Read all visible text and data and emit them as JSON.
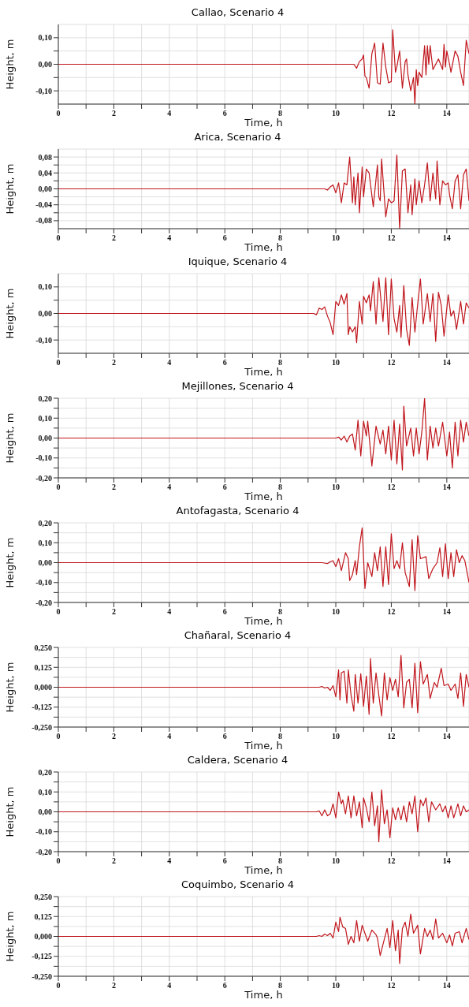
{
  "chart_data": [
    {
      "type": "line",
      "title": "Callao, Scenario 4",
      "xlabel": "Time, h",
      "ylabel": "Height, m",
      "color": "#c0161c",
      "grid": true,
      "marker": "none",
      "line_style": "solid",
      "xlim": [
        0,
        14.8
      ],
      "xticks": [
        0,
        {
          "value": 1,
          "label": null
        },
        2,
        {
          "value": 3,
          "label": null
        },
        4,
        {
          "value": 5,
          "label": null
        },
        6,
        {
          "value": 7,
          "label": null
        },
        8,
        {
          "value": 9,
          "label": null
        },
        10,
        {
          "value": 11,
          "label": null
        },
        12,
        {
          "value": 13,
          "label": null
        },
        14
      ],
      "ylim": [
        -0.15,
        0.15
      ],
      "yticks": [
        {
          "value": -0.1,
          "label": "-0,10"
        },
        {
          "value": -0.05,
          "label": null
        },
        {
          "value": 0,
          "label": "0,00"
        },
        {
          "value": 0.05,
          "label": null
        },
        {
          "value": 0.1,
          "label": "0,10"
        }
      ],
      "x": [
        0,
        10.5,
        10.65,
        10.75,
        10.85,
        10.95,
        11.0,
        11.05,
        11.1,
        11.2,
        11.3,
        11.4,
        11.5,
        11.6,
        11.7,
        11.8,
        11.9,
        12.0,
        12.05,
        12.15,
        12.2,
        12.3,
        12.4,
        12.5,
        12.55,
        12.6,
        12.7,
        12.8,
        12.85,
        12.9,
        12.95,
        13.0,
        13.1,
        13.2,
        13.25,
        13.3,
        13.35,
        13.4,
        13.5,
        13.7,
        13.85,
        13.9,
        13.95,
        14.0,
        14.1,
        14.15,
        14.3,
        14.4,
        14.5,
        14.6,
        14.7,
        14.8
      ],
      "values": [
        0,
        0,
        0,
        -0.015,
        0.01,
        0.02,
        0.035,
        -0.045,
        -0.05,
        -0.09,
        0.04,
        0.08,
        -0.07,
        -0.075,
        0.08,
        -0.01,
        -0.07,
        -0.065,
        0.13,
        -0.03,
        -0.01,
        0.05,
        -0.09,
        0.01,
        0.02,
        -0.04,
        -0.1,
        -0.05,
        -0.15,
        -0.02,
        -0.08,
        -0.03,
        -0.05,
        0.07,
        -0.04,
        0.07,
        0.0,
        0.07,
        -0.02,
        0.02,
        -0.02,
        0.075,
        -0.01,
        0.05,
        0.0,
        -0.03,
        0.05,
        0.03,
        -0.03,
        -0.08,
        0.09,
        0.04
      ]
    },
    {
      "type": "line",
      "title": "Arica, Scenario 4",
      "xlabel": "Time, h",
      "ylabel": "Height, m",
      "color": "#c0161c",
      "grid": true,
      "marker": "none",
      "line_style": "solid",
      "xlim": [
        0,
        14.8
      ],
      "xticks": [
        0,
        {
          "value": 1,
          "label": null
        },
        2,
        {
          "value": 3,
          "label": null
        },
        4,
        {
          "value": 5,
          "label": null
        },
        6,
        {
          "value": 7,
          "label": null
        },
        8,
        {
          "value": 9,
          "label": null
        },
        10,
        {
          "value": 11,
          "label": null
        },
        12,
        {
          "value": 13,
          "label": null
        },
        14
      ],
      "ylim": [
        -0.1,
        0.1
      ],
      "yticks": [
        {
          "value": -0.08,
          "label": "-0,08"
        },
        {
          "value": -0.06,
          "label": null
        },
        {
          "value": -0.04,
          "label": "-0,04"
        },
        {
          "value": -0.02,
          "label": null
        },
        {
          "value": 0,
          "label": "0,00"
        },
        {
          "value": 0.02,
          "label": null
        },
        {
          "value": 0.04,
          "label": "0,04"
        },
        {
          "value": 0.06,
          "label": null
        },
        {
          "value": 0.08,
          "label": "0,08"
        }
      ],
      "x": [
        0,
        9.6,
        9.7,
        9.8,
        9.9,
        10.0,
        10.1,
        10.2,
        10.3,
        10.4,
        10.5,
        10.6,
        10.65,
        10.7,
        10.8,
        10.85,
        10.95,
        11.0,
        11.1,
        11.2,
        11.35,
        11.5,
        11.55,
        11.6,
        11.65,
        11.8,
        11.9,
        12.0,
        12.1,
        12.2,
        12.3,
        12.4,
        12.5,
        12.6,
        12.7,
        12.75,
        12.85,
        12.9,
        13.0,
        13.1,
        13.2,
        13.3,
        13.4,
        13.5,
        13.6,
        13.65,
        13.75,
        13.85,
        13.95,
        14.05,
        14.1,
        14.2,
        14.3,
        14.4,
        14.5,
        14.6,
        14.7,
        14.8
      ],
      "values": [
        0,
        0,
        -0.003,
        0.005,
        0.01,
        -0.01,
        0.015,
        -0.035,
        0.015,
        0.01,
        0.08,
        -0.035,
        0.03,
        -0.04,
        0.04,
        -0.06,
        0.055,
        -0.02,
        0.05,
        0.04,
        -0.045,
        0.06,
        -0.02,
        -0.03,
        0.075,
        -0.07,
        -0.025,
        -0.035,
        -0.03,
        0.085,
        -0.1,
        0.045,
        0.05,
        -0.06,
        0.01,
        -0.065,
        0.025,
        -0.04,
        0.02,
        -0.035,
        0.01,
        0.065,
        -0.03,
        0.04,
        -0.025,
        0.07,
        -0.04,
        0.02,
        0.01,
        0.015,
        -0.015,
        -0.05,
        0.02,
        0.035,
        -0.05,
        0.035,
        0.05,
        -0.03
      ]
    },
    {
      "type": "line",
      "title": "Iquique, Scenario 4",
      "xlabel": "Time, h",
      "ylabel": "Height, m",
      "color": "#c0161c",
      "grid": true,
      "marker": "none",
      "line_style": "solid",
      "xlim": [
        0,
        14.8
      ],
      "xticks": [
        0,
        {
          "value": 1,
          "label": null
        },
        2,
        {
          "value": 3,
          "label": null
        },
        4,
        {
          "value": 5,
          "label": null
        },
        6,
        {
          "value": 7,
          "label": null
        },
        8,
        {
          "value": 9,
          "label": null
        },
        10,
        {
          "value": 11,
          "label": null
        },
        12,
        {
          "value": 13,
          "label": null
        },
        14
      ],
      "ylim": [
        -0.15,
        0.15
      ],
      "yticks": [
        {
          "value": -0.1,
          "label": "-0,10"
        },
        {
          "value": -0.05,
          "label": null
        },
        {
          "value": 0,
          "label": "0,00"
        },
        {
          "value": 0.05,
          "label": null
        },
        {
          "value": 0.1,
          "label": "0,10"
        }
      ],
      "x": [
        0,
        9.2,
        9.3,
        9.4,
        9.5,
        9.6,
        9.7,
        9.8,
        9.9,
        10.0,
        10.1,
        10.2,
        10.3,
        10.4,
        10.45,
        10.5,
        10.6,
        10.7,
        10.75,
        10.85,
        10.95,
        11.0,
        11.1,
        11.2,
        11.25,
        11.35,
        11.45,
        11.55,
        11.7,
        11.8,
        11.9,
        12.0,
        12.1,
        12.2,
        12.3,
        12.35,
        12.45,
        12.55,
        12.65,
        12.75,
        12.85,
        12.95,
        13.05,
        13.15,
        13.3,
        13.4,
        13.5,
        13.6,
        13.7,
        13.8,
        13.9,
        14.05,
        14.15,
        14.25,
        14.35,
        14.5,
        14.6,
        14.7,
        14.8
      ],
      "values": [
        0,
        0,
        -0.005,
        0.02,
        0.015,
        0.025,
        -0.01,
        -0.035,
        -0.08,
        0.045,
        0.03,
        0.07,
        0.035,
        0.075,
        -0.08,
        -0.05,
        -0.07,
        -0.05,
        -0.11,
        0.045,
        -0.04,
        0.065,
        0.04,
        0.07,
        0.01,
        0.12,
        -0.04,
        0.135,
        -0.03,
        0.135,
        -0.08,
        0.13,
        -0.02,
        -0.07,
        0.03,
        -0.09,
        0.105,
        -0.06,
        -0.12,
        0.06,
        -0.07,
        0.035,
        0.13,
        -0.04,
        0.075,
        -0.03,
        0.075,
        -0.105,
        0.08,
        0.03,
        -0.085,
        0.07,
        -0.01,
        0.01,
        -0.06,
        0.045,
        -0.04,
        0.04,
        0.02
      ]
    },
    {
      "type": "line",
      "title": "Mejillones, Scenario 4",
      "xlabel": "Time, h",
      "ylabel": "Height, m",
      "color": "#c0161c",
      "grid": true,
      "marker": "none",
      "line_style": "solid",
      "xlim": [
        0,
        14.8
      ],
      "xticks": [
        0,
        {
          "value": 1,
          "label": null
        },
        2,
        {
          "value": 3,
          "label": null
        },
        4,
        {
          "value": 5,
          "label": null
        },
        6,
        {
          "value": 7,
          "label": null
        },
        8,
        {
          "value": 9,
          "label": null
        },
        10,
        {
          "value": 11,
          "label": null
        },
        12,
        {
          "value": 13,
          "label": null
        },
        14
      ],
      "ylim": [
        -0.2,
        0.2
      ],
      "yticks": [
        {
          "value": -0.2,
          "label": "-0,20"
        },
        {
          "value": -0.15,
          "label": null
        },
        {
          "value": -0.1,
          "label": "-0,10"
        },
        {
          "value": -0.05,
          "label": null
        },
        {
          "value": 0,
          "label": "0,00"
        },
        {
          "value": 0.05,
          "label": null
        },
        {
          "value": 0.1,
          "label": "0,10"
        },
        {
          "value": 0.15,
          "label": null
        },
        {
          "value": 0.2,
          "label": "0,20"
        }
      ],
      "x": [
        0,
        10.0,
        10.1,
        10.2,
        10.3,
        10.4,
        10.5,
        10.6,
        10.7,
        10.8,
        10.9,
        11.0,
        11.1,
        11.15,
        11.3,
        11.45,
        11.6,
        11.7,
        11.8,
        11.9,
        12.0,
        12.1,
        12.2,
        12.3,
        12.4,
        12.45,
        12.55,
        12.7,
        12.8,
        12.9,
        13.0,
        13.1,
        13.2,
        13.3,
        13.4,
        13.5,
        13.6,
        13.7,
        13.85,
        14.0,
        14.1,
        14.2,
        14.3,
        14.4,
        14.5,
        14.6,
        14.7,
        14.8
      ],
      "values": [
        0,
        0,
        0.005,
        -0.01,
        0.01,
        -0.02,
        0.01,
        0.02,
        -0.06,
        0.09,
        -0.09,
        0.085,
        0.01,
        0.085,
        -0.14,
        0.06,
        -0.03,
        0.04,
        -0.08,
        0.06,
        -0.11,
        0.09,
        -0.13,
        0.07,
        -0.16,
        0.16,
        -0.04,
        0.05,
        -0.09,
        0.05,
        -0.08,
        0.03,
        0.2,
        -0.11,
        0.06,
        -0.05,
        0.05,
        -0.04,
        0.08,
        -0.09,
        0.03,
        -0.15,
        0.08,
        -0.09,
        0.09,
        -0.02,
        0.08,
        0.01
      ]
    },
    {
      "type": "line",
      "title": "Antofagasta, Scenario 4",
      "xlabel": "Time, h",
      "ylabel": "Height, m",
      "color": "#c0161c",
      "grid": true,
      "marker": "none",
      "line_style": "solid",
      "xlim": [
        0,
        14.8
      ],
      "xticks": [
        0,
        {
          "value": 1,
          "label": null
        },
        2,
        {
          "value": 3,
          "label": null
        },
        4,
        {
          "value": 5,
          "label": null
        },
        6,
        {
          "value": 7,
          "label": null
        },
        8,
        {
          "value": 9,
          "label": null
        },
        10,
        {
          "value": 11,
          "label": null
        },
        12,
        {
          "value": 13,
          "label": null
        },
        14
      ],
      "ylim": [
        -0.2,
        0.2
      ],
      "yticks": [
        {
          "value": -0.2,
          "label": "-0,20"
        },
        {
          "value": -0.15,
          "label": null
        },
        {
          "value": -0.1,
          "label": "-0,10"
        },
        {
          "value": -0.05,
          "label": null
        },
        {
          "value": 0,
          "label": "0,00"
        },
        {
          "value": 0.05,
          "label": null
        },
        {
          "value": 0.1,
          "label": "0,10"
        },
        {
          "value": 0.15,
          "label": null
        },
        {
          "value": 0.2,
          "label": "0,20"
        }
      ],
      "x": [
        0,
        9.5,
        9.7,
        9.8,
        9.9,
        10.0,
        10.1,
        10.2,
        10.35,
        10.45,
        10.5,
        10.6,
        10.7,
        10.75,
        10.85,
        10.95,
        11.05,
        11.15,
        11.3,
        11.4,
        11.5,
        11.6,
        11.7,
        11.8,
        11.9,
        12.0,
        12.1,
        12.2,
        12.3,
        12.4,
        12.5,
        12.65,
        12.75,
        12.85,
        12.95,
        13.05,
        13.25,
        13.35,
        13.5,
        13.65,
        13.75,
        13.85,
        13.95,
        14.05,
        14.15,
        14.25,
        14.35,
        14.45,
        14.55,
        14.65,
        14.8
      ],
      "values": [
        0,
        0,
        -0.005,
        0.005,
        0.01,
        -0.02,
        0.02,
        -0.04,
        0.05,
        0.02,
        -0.09,
        -0.06,
        0.01,
        -0.06,
        0.08,
        0.175,
        -0.13,
        0.0,
        -0.07,
        0.05,
        -0.04,
        0.08,
        -0.12,
        0.08,
        -0.11,
        0.145,
        -0.03,
        0.01,
        -0.03,
        0.1,
        -0.05,
        -0.12,
        0.115,
        -0.14,
        0.135,
        0.02,
        0.03,
        -0.08,
        -0.03,
        0.0,
        0.075,
        -0.07,
        0.095,
        -0.08,
        0.05,
        -0.07,
        0.065,
        0.0,
        0.035,
        0.01,
        -0.1
      ]
    },
    {
      "type": "line",
      "title": "Chañaral, Scenario 4",
      "xlabel": "Time, h",
      "ylabel": "Height, m",
      "color": "#c0161c",
      "grid": true,
      "marker": "none",
      "line_style": "solid",
      "xlim": [
        0,
        14.8
      ],
      "xticks": [
        0,
        {
          "value": 1,
          "label": null
        },
        2,
        {
          "value": 3,
          "label": null
        },
        4,
        {
          "value": 5,
          "label": null
        },
        6,
        {
          "value": 7,
          "label": null
        },
        8,
        {
          "value": 9,
          "label": null
        },
        10,
        {
          "value": 11,
          "label": null
        },
        12,
        {
          "value": 13,
          "label": null
        },
        14
      ],
      "ylim": [
        -0.25,
        0.25
      ],
      "yticks": [
        {
          "value": -0.25,
          "label": "-0,250"
        },
        {
          "value": -0.1875,
          "label": null
        },
        {
          "value": -0.125,
          "label": "-0,125"
        },
        {
          "value": -0.0625,
          "label": null
        },
        {
          "value": 0,
          "label": "0,000"
        },
        {
          "value": 0.0625,
          "label": null
        },
        {
          "value": 0.125,
          "label": "0,125"
        },
        {
          "value": 0.1875,
          "label": null
        },
        {
          "value": 0.25,
          "label": "0,250"
        }
      ],
      "x": [
        0,
        9.4,
        9.5,
        9.6,
        9.7,
        9.8,
        9.9,
        10.0,
        10.1,
        10.15,
        10.2,
        10.3,
        10.4,
        10.45,
        10.55,
        10.65,
        10.7,
        10.8,
        10.9,
        11.0,
        11.1,
        11.2,
        11.25,
        11.35,
        11.45,
        11.55,
        11.65,
        11.75,
        11.85,
        11.95,
        12.05,
        12.15,
        12.25,
        12.35,
        12.45,
        12.55,
        12.65,
        12.75,
        12.85,
        12.95,
        13.05,
        13.15,
        13.3,
        13.4,
        13.55,
        13.65,
        13.8,
        13.9,
        14.05,
        14.15,
        14.3,
        14.4,
        14.5,
        14.6,
        14.7,
        14.8
      ],
      "values": [
        0,
        0,
        0.005,
        -0.005,
        0.0,
        -0.02,
        0.01,
        -0.06,
        0.11,
        -0.08,
        0.09,
        0.1,
        -0.1,
        0.11,
        -0.05,
        -0.15,
        0.08,
        -0.1,
        0.085,
        -0.12,
        0.07,
        -0.17,
        0.18,
        -0.1,
        0.09,
        -0.05,
        -0.18,
        0.09,
        -0.08,
        0.06,
        -0.02,
        0.05,
        -0.06,
        0.2,
        -0.13,
        0.03,
        0.05,
        -0.13,
        0.15,
        -0.16,
        0.16,
        0.02,
        0.08,
        -0.07,
        0.03,
        0.0,
        0.12,
        0.01,
        0.02,
        -0.02,
        0.02,
        -0.07,
        0.09,
        -0.12,
        0.08,
        0.0
      ]
    },
    {
      "type": "line",
      "title": "Caldera, Scenario 4",
      "xlabel": "Time, h",
      "ylabel": "Height, m",
      "color": "#c0161c",
      "grid": true,
      "marker": "none",
      "line_style": "solid",
      "xlim": [
        0,
        14.8
      ],
      "xticks": [
        0,
        {
          "value": 1,
          "label": null
        },
        2,
        {
          "value": 3,
          "label": null
        },
        4,
        {
          "value": 5,
          "label": null
        },
        6,
        {
          "value": 7,
          "label": null
        },
        8,
        {
          "value": 9,
          "label": null
        },
        10,
        {
          "value": 11,
          "label": null
        },
        12,
        {
          "value": 13,
          "label": null
        },
        14
      ],
      "ylim": [
        -0.2,
        0.2
      ],
      "yticks": [
        {
          "value": -0.2,
          "label": "-0,20"
        },
        {
          "value": -0.15,
          "label": null
        },
        {
          "value": -0.1,
          "label": "-0,10"
        },
        {
          "value": -0.05,
          "label": null
        },
        {
          "value": 0,
          "label": "0,00"
        },
        {
          "value": 0.05,
          "label": null
        },
        {
          "value": 0.1,
          "label": "0,10"
        },
        {
          "value": 0.15,
          "label": null
        },
        {
          "value": 0.2,
          "label": "0,20"
        }
      ],
      "x": [
        0,
        9.3,
        9.4,
        9.5,
        9.6,
        9.7,
        9.8,
        9.9,
        10.0,
        10.1,
        10.2,
        10.25,
        10.35,
        10.45,
        10.55,
        10.65,
        10.75,
        10.85,
        10.95,
        11.0,
        11.1,
        11.2,
        11.3,
        11.4,
        11.5,
        11.55,
        11.65,
        11.75,
        11.85,
        11.95,
        12.05,
        12.15,
        12.25,
        12.35,
        12.45,
        12.55,
        12.65,
        12.75,
        12.85,
        12.95,
        13.05,
        13.15,
        13.25,
        13.35,
        13.45,
        13.6,
        13.75,
        13.85,
        13.95,
        14.05,
        14.15,
        14.25,
        14.4,
        14.5,
        14.6,
        14.7,
        14.8
      ],
      "values": [
        0,
        0,
        0.005,
        -0.02,
        0.01,
        -0.02,
        -0.01,
        0.04,
        -0.03,
        0.1,
        0.04,
        0.06,
        -0.01,
        0.08,
        -0.03,
        0.08,
        -0.02,
        0.05,
        -0.08,
        0.07,
        0.02,
        -0.05,
        0.1,
        -0.07,
        0.03,
        -0.15,
        0.11,
        -0.06,
        0.01,
        -0.13,
        0.02,
        -0.04,
        0.02,
        -0.04,
        0.03,
        -0.05,
        0.05,
        -0.01,
        0.08,
        -0.1,
        0.06,
        0.03,
        0.07,
        -0.05,
        0.05,
        0.01,
        0.04,
        0.0,
        0.03,
        -0.03,
        0.03,
        -0.03,
        0.04,
        -0.02,
        0.03,
        0.0,
        0.01
      ]
    },
    {
      "type": "line",
      "title": "Coquimbo, Scenario 4",
      "xlabel": "Time, h",
      "ylabel": "Height, m",
      "color": "#c0161c",
      "grid": true,
      "marker": "none",
      "line_style": "solid",
      "xlim": [
        0,
        14.8
      ],
      "xticks": [
        0,
        {
          "value": 1,
          "label": null
        },
        2,
        {
          "value": 3,
          "label": null
        },
        4,
        {
          "value": 5,
          "label": null
        },
        6,
        {
          "value": 7,
          "label": null
        },
        8,
        {
          "value": 9,
          "label": null
        },
        10,
        {
          "value": 11,
          "label": null
        },
        12,
        {
          "value": 13,
          "label": null
        },
        14
      ],
      "ylim": [
        -0.25,
        0.25
      ],
      "yticks": [
        {
          "value": -0.25,
          "label": "-0,250"
        },
        {
          "value": -0.1875,
          "label": null
        },
        {
          "value": -0.125,
          "label": "-0,125"
        },
        {
          "value": -0.0625,
          "label": null
        },
        {
          "value": 0,
          "label": "0,000"
        },
        {
          "value": 0.0625,
          "label": null
        },
        {
          "value": 0.125,
          "label": "0,125"
        },
        {
          "value": 0.1875,
          "label": null
        },
        {
          "value": 0.25,
          "label": "0,250"
        }
      ],
      "x": [
        0,
        9.3,
        9.4,
        9.5,
        9.6,
        9.7,
        9.8,
        9.9,
        10.0,
        10.1,
        10.15,
        10.25,
        10.35,
        10.45,
        10.55,
        10.65,
        10.75,
        10.85,
        10.95,
        11.05,
        11.15,
        11.3,
        11.45,
        11.5,
        11.6,
        11.7,
        11.85,
        11.95,
        12.05,
        12.15,
        12.25,
        12.3,
        12.4,
        12.5,
        12.6,
        12.7,
        12.8,
        12.95,
        13.05,
        13.2,
        13.3,
        13.4,
        13.5,
        13.6,
        13.7,
        13.85,
        14.0,
        14.1,
        14.2,
        14.3,
        14.45,
        14.55,
        14.7,
        14.8
      ],
      "values": [
        0,
        0,
        0.005,
        0.0,
        0.015,
        0.005,
        0.02,
        -0.01,
        0.09,
        0.03,
        0.12,
        0.06,
        0.05,
        -0.05,
        0.0,
        -0.04,
        0.1,
        -0.03,
        0.07,
        0.02,
        -0.03,
        0.04,
        0.01,
        -0.01,
        -0.12,
        -0.05,
        0.05,
        -0.07,
        0.1,
        -0.09,
        0.04,
        -0.17,
        0.05,
        0.09,
        0.0,
        0.14,
        0.02,
        0.07,
        -0.11,
        0.05,
        0.0,
        0.04,
        -0.02,
        0.11,
        -0.01,
        0.02,
        -0.04,
        0.01,
        -0.06,
        0.02,
        0.03,
        -0.04,
        0.05,
        -0.02
      ]
    }
  ]
}
